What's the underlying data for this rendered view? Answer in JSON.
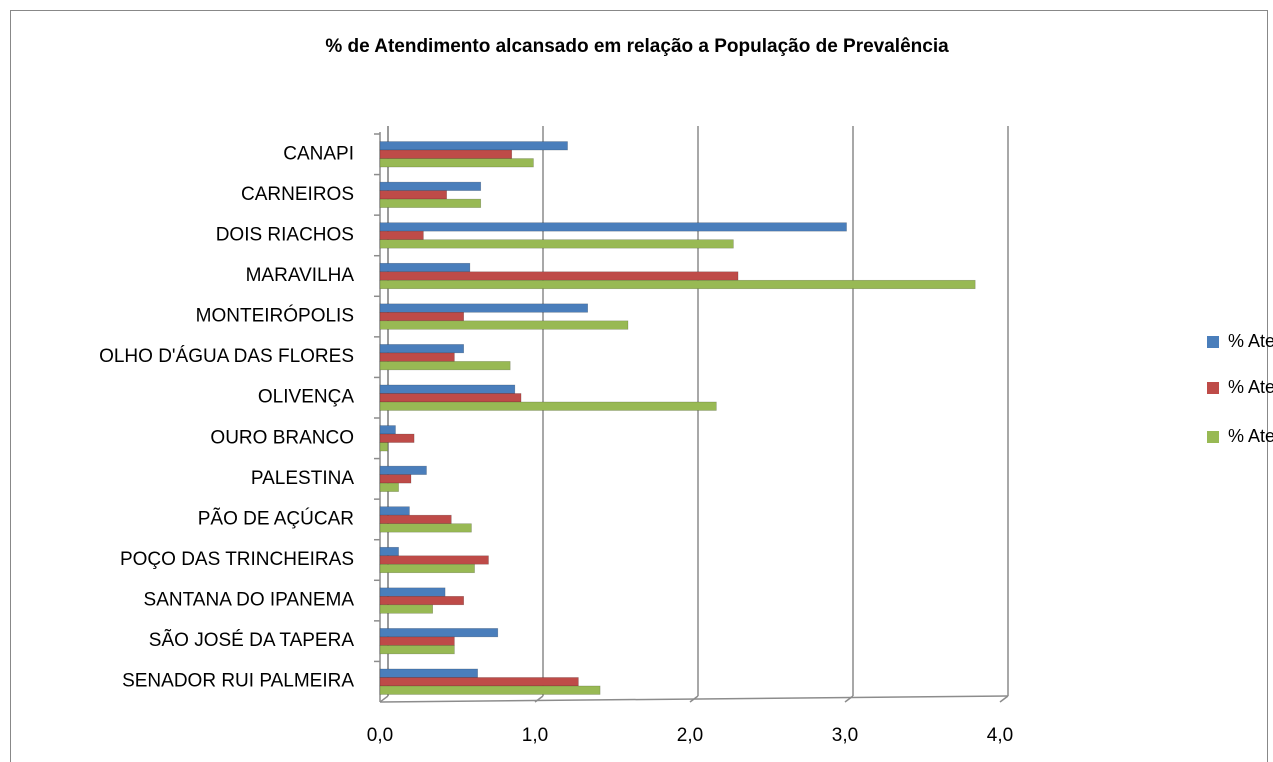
{
  "chart_data": {
    "type": "bar",
    "orientation": "horizontal",
    "title": "% de Atendimento alcansado em relação a População de  Prevalência",
    "categories": [
      "CANAPI",
      "CARNEIROS",
      "DOIS RIACHOS",
      "MARAVILHA",
      "MONTEIRÓPOLIS",
      "OLHO D'ÁGUA DAS FLORES",
      "OLIVENÇA",
      "OURO BRANCO",
      "PALESTINA",
      "PÃO DE AÇÚCAR",
      "POÇO DAS TRINCHEIRAS",
      "SANTANA DO IPANEMA",
      "SÃO JOSÉ DA TAPERA",
      "SENADOR RUI PALMEIRA"
    ],
    "series": [
      {
        "name": "% Atend. Jan",
        "color": "#4a7ebb",
        "values": [
          1.21,
          0.65,
          3.01,
          0.58,
          1.34,
          0.54,
          0.87,
          0.1,
          0.3,
          0.19,
          0.12,
          0.42,
          0.76,
          0.63
        ]
      },
      {
        "name": "% Atend. Fev",
        "color": "#be4b48",
        "values": [
          0.85,
          0.43,
          0.28,
          2.31,
          0.54,
          0.48,
          0.91,
          0.22,
          0.2,
          0.46,
          0.7,
          0.54,
          0.48,
          1.28
        ]
      },
      {
        "name": "% Atend. Mar",
        "color": "#98b954",
        "values": [
          0.99,
          0.65,
          2.28,
          3.84,
          1.6,
          0.84,
          2.17,
          0.05,
          0.12,
          0.59,
          0.61,
          0.34,
          0.48,
          1.42
        ]
      }
    ],
    "xlim": [
      0,
      4
    ],
    "xticks": [
      {
        "value": 0,
        "label": "0,0"
      },
      {
        "value": 1,
        "label": "1,0"
      },
      {
        "value": 2,
        "label": "2,0"
      },
      {
        "value": 3,
        "label": "3,0"
      },
      {
        "value": 4,
        "label": "4,0"
      }
    ],
    "grid": true,
    "legend": "right"
  }
}
